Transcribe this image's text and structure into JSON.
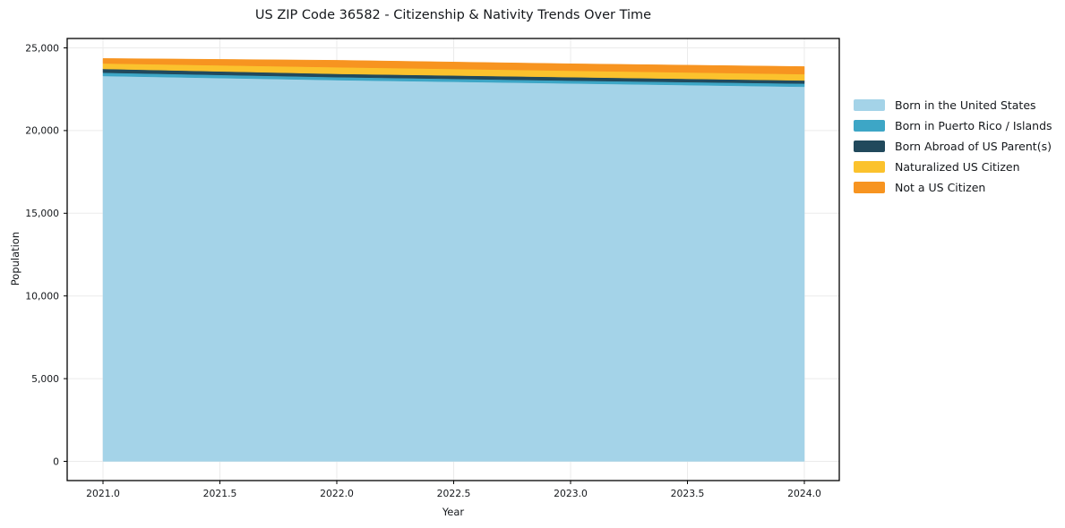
{
  "chart_data": {
    "type": "area",
    "stacked": true,
    "title": "US ZIP Code 36582 - Citizenship & Nativity Trends Over Time",
    "xlabel": "Year",
    "ylabel": "Population",
    "x": [
      2021.0,
      2022.0,
      2023.0,
      2024.0
    ],
    "series": [
      {
        "name": "Born in the United States",
        "color": "#A4D3E8",
        "values": [
          23300,
          23050,
          22850,
          22650
        ]
      },
      {
        "name": "Born in Puerto Rico / Islands",
        "color": "#3DA6C6",
        "values": [
          200,
          180,
          170,
          190
        ]
      },
      {
        "name": "Born Abroad of US Parent(s)",
        "color": "#21495C",
        "values": [
          230,
          200,
          210,
          190
        ]
      },
      {
        "name": "Naturalized US Citizen",
        "color": "#FBC22D",
        "values": [
          330,
          400,
          390,
          380
        ]
      },
      {
        "name": "Not a US Citizen",
        "color": "#F79420",
        "values": [
          300,
          420,
          420,
          460
        ]
      }
    ],
    "stack_totals": [
      24360,
      24250,
      24040,
      23870
    ],
    "x_ticks": {
      "values": [
        2021.0,
        2021.5,
        2022.0,
        2022.5,
        2023.0,
        2023.5,
        2024.0
      ],
      "labels": [
        "2021.0",
        "2021.5",
        "2022.0",
        "2022.5",
        "2023.0",
        "2023.5",
        "2024.0"
      ]
    },
    "y_ticks": {
      "values": [
        0,
        5000,
        10000,
        15000,
        20000,
        25000
      ],
      "labels": [
        "0",
        "5,000",
        "10,000",
        "15,000",
        "20,000",
        "25,000"
      ]
    },
    "xlim": [
      2020.85,
      2024.15
    ],
    "ylim": [
      -1165,
      25570
    ],
    "grid": true,
    "grid_color": "#ebebeb",
    "spine_color": "#000000",
    "legend_position": "right",
    "background_color": "#ffffff"
  }
}
